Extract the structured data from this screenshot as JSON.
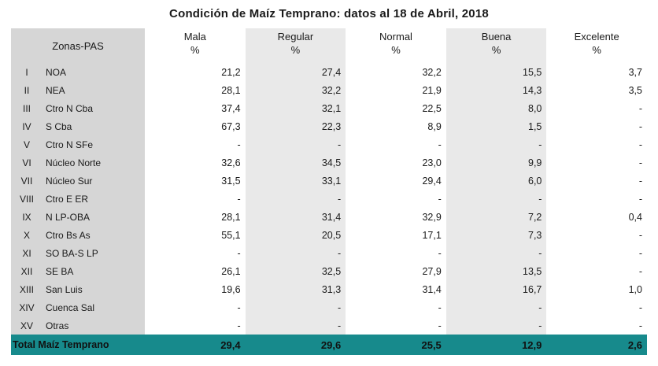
{
  "title": "Condición de Maíz Temprano: datos al 18 de Abril, 2018",
  "header": {
    "zonas": "Zonas-PAS",
    "columns": [
      {
        "name": "Mala",
        "unit": "%"
      },
      {
        "name": "Regular",
        "unit": "%"
      },
      {
        "name": "Normal",
        "unit": "%"
      },
      {
        "name": "Buena",
        "unit": "%"
      },
      {
        "name": "Excelente",
        "unit": "%"
      }
    ]
  },
  "rows": [
    {
      "num": "I",
      "zone": "NOA",
      "values": [
        "21,2",
        "27,4",
        "32,2",
        "15,5",
        "3,7"
      ]
    },
    {
      "num": "II",
      "zone": "NEA",
      "values": [
        "28,1",
        "32,2",
        "21,9",
        "14,3",
        "3,5"
      ]
    },
    {
      "num": "III",
      "zone": "Ctro N Cba",
      "values": [
        "37,4",
        "32,1",
        "22,5",
        "8,0",
        "-"
      ]
    },
    {
      "num": "IV",
      "zone": "S Cba",
      "values": [
        "67,3",
        "22,3",
        "8,9",
        "1,5",
        "-"
      ]
    },
    {
      "num": "V",
      "zone": "Ctro N SFe",
      "values": [
        "-",
        "-",
        "-",
        "-",
        "-"
      ]
    },
    {
      "num": "VI",
      "zone": "Núcleo Norte",
      "values": [
        "32,6",
        "34,5",
        "23,0",
        "9,9",
        "-"
      ]
    },
    {
      "num": "VII",
      "zone": "Núcleo Sur",
      "values": [
        "31,5",
        "33,1",
        "29,4",
        "6,0",
        "-"
      ]
    },
    {
      "num": "VIII",
      "zone": "Ctro E ER",
      "values": [
        "-",
        "-",
        "-",
        "-",
        "-"
      ]
    },
    {
      "num": "IX",
      "zone": "N LP-OBA",
      "values": [
        "28,1",
        "31,4",
        "32,9",
        "7,2",
        "0,4"
      ]
    },
    {
      "num": "X",
      "zone": "Ctro Bs As",
      "values": [
        "55,1",
        "20,5",
        "17,1",
        "7,3",
        "-"
      ]
    },
    {
      "num": "XI",
      "zone": "SO BA-S LP",
      "values": [
        "-",
        "-",
        "-",
        "-",
        "-"
      ]
    },
    {
      "num": "XII",
      "zone": "SE BA",
      "values": [
        "26,1",
        "32,5",
        "27,9",
        "13,5",
        "-"
      ]
    },
    {
      "num": "XIII",
      "zone": "San Luis",
      "values": [
        "19,6",
        "31,3",
        "31,4",
        "16,7",
        "1,0"
      ]
    },
    {
      "num": "XIV",
      "zone": "Cuenca Sal",
      "values": [
        "-",
        "-",
        "-",
        "-",
        "-"
      ]
    },
    {
      "num": "XV",
      "zone": "Otras",
      "values": [
        "-",
        "-",
        "-",
        "-",
        "-"
      ]
    }
  ],
  "total": {
    "label": "Total Maíz Temprano",
    "values": [
      "29,4",
      "29,6",
      "25,5",
      "12,9",
      "2,6"
    ]
  },
  "colors": {
    "total_row": "#178a8c",
    "zone_column": "#d6d6d6",
    "alt_column": "#e9e9e9"
  }
}
